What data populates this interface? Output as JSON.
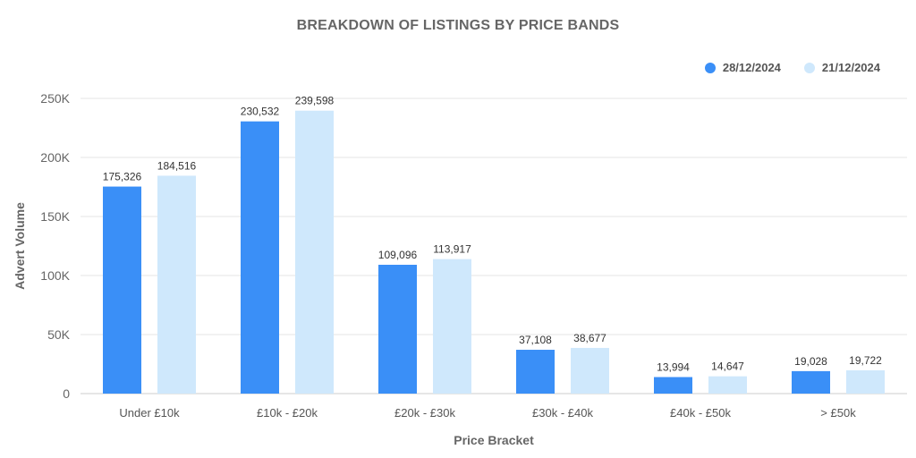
{
  "chart_data": {
    "type": "bar",
    "title": "BREAKDOWN OF LISTINGS BY PRICE BANDS",
    "xlabel": "Price Bracket",
    "ylabel": "Advert Volume",
    "categories": [
      "Under £10k",
      "£10k - £20k",
      "£20k - £30k",
      "£30k - £40k",
      "£40k - £50k",
      "> £50k"
    ],
    "series": [
      {
        "name": "28/12/2024",
        "color": "#3a8ff7",
        "values": [
          175326,
          230532,
          109096,
          37108,
          13994,
          19028
        ],
        "value_labels": [
          "175,326",
          "230,532",
          "109,096",
          "37,108",
          "13,994",
          "19,028"
        ]
      },
      {
        "name": "21/12/2024",
        "color": "#cfe8fc",
        "values": [
          184516,
          239598,
          113917,
          38677,
          14647,
          19722
        ],
        "value_labels": [
          "184,516",
          "239,598",
          "113,917",
          "38,677",
          "14,647",
          "19,722"
        ]
      }
    ],
    "ylim": [
      0,
      250000
    ],
    "yticks": [
      0,
      50000,
      100000,
      150000,
      200000,
      250000
    ],
    "ytick_labels": [
      "0",
      "50K",
      "100K",
      "150K",
      "200K",
      "250K"
    ],
    "grid": true,
    "legend_position": "top-right"
  }
}
